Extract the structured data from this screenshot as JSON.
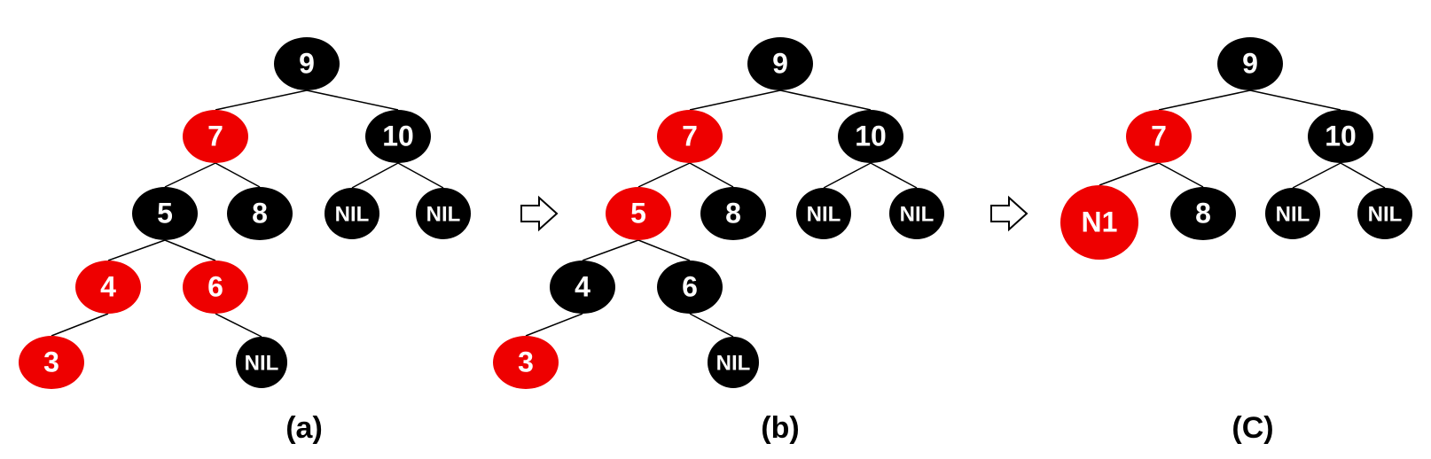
{
  "colors": {
    "black_node": "#000000",
    "red_node": "#ee0000",
    "label": "#ffffff",
    "edge": "#000000",
    "background": "#ffffff"
  },
  "panels": [
    {
      "id": "a",
      "caption": "(a)",
      "nodes": [
        {
          "id": "a9",
          "label": "9",
          "color": "black"
        },
        {
          "id": "a7",
          "label": "7",
          "color": "red"
        },
        {
          "id": "a10",
          "label": "10",
          "color": "black"
        },
        {
          "id": "a5",
          "label": "5",
          "color": "black"
        },
        {
          "id": "a8",
          "label": "8",
          "color": "black"
        },
        {
          "id": "anil1",
          "label": "NIL",
          "color": "black"
        },
        {
          "id": "anil2",
          "label": "NIL",
          "color": "black"
        },
        {
          "id": "a4",
          "label": "4",
          "color": "red"
        },
        {
          "id": "a6",
          "label": "6",
          "color": "red"
        },
        {
          "id": "a3",
          "label": "3",
          "color": "red"
        },
        {
          "id": "anil3",
          "label": "NIL",
          "color": "black"
        }
      ],
      "edges": [
        [
          "a9",
          "a7"
        ],
        [
          "a9",
          "a10"
        ],
        [
          "a7",
          "a5"
        ],
        [
          "a7",
          "a8"
        ],
        [
          "a10",
          "anil1"
        ],
        [
          "a10",
          "anil2"
        ],
        [
          "a5",
          "a4"
        ],
        [
          "a5",
          "a6"
        ],
        [
          "a4",
          "a3"
        ],
        [
          "a6",
          "anil3"
        ]
      ]
    },
    {
      "id": "b",
      "caption": "(b)",
      "nodes": [
        {
          "id": "b9",
          "label": "9",
          "color": "black"
        },
        {
          "id": "b7",
          "label": "7",
          "color": "red"
        },
        {
          "id": "b10",
          "label": "10",
          "color": "black"
        },
        {
          "id": "b5",
          "label": "5",
          "color": "red"
        },
        {
          "id": "b8",
          "label": "8",
          "color": "black"
        },
        {
          "id": "bnil1",
          "label": "NIL",
          "color": "black"
        },
        {
          "id": "bnil2",
          "label": "NIL",
          "color": "black"
        },
        {
          "id": "b4",
          "label": "4",
          "color": "black"
        },
        {
          "id": "b6",
          "label": "6",
          "color": "black"
        },
        {
          "id": "b3",
          "label": "3",
          "color": "red"
        },
        {
          "id": "bnil3",
          "label": "NIL",
          "color": "black"
        }
      ],
      "edges": [
        [
          "b9",
          "b7"
        ],
        [
          "b9",
          "b10"
        ],
        [
          "b7",
          "b5"
        ],
        [
          "b7",
          "b8"
        ],
        [
          "b10",
          "bnil1"
        ],
        [
          "b10",
          "bnil2"
        ],
        [
          "b5",
          "b4"
        ],
        [
          "b5",
          "b6"
        ],
        [
          "b4",
          "b3"
        ],
        [
          "b6",
          "bnil3"
        ]
      ]
    },
    {
      "id": "c",
      "caption": "(C)",
      "nodes": [
        {
          "id": "c9",
          "label": "9",
          "color": "black"
        },
        {
          "id": "c7",
          "label": "7",
          "color": "red"
        },
        {
          "id": "c10",
          "label": "10",
          "color": "black"
        },
        {
          "id": "cn1",
          "label": "N1",
          "color": "red"
        },
        {
          "id": "c8",
          "label": "8",
          "color": "black"
        },
        {
          "id": "cnil1",
          "label": "NIL",
          "color": "black"
        },
        {
          "id": "cnil2",
          "label": "NIL",
          "color": "black"
        }
      ],
      "edges": [
        [
          "c9",
          "c7"
        ],
        [
          "c9",
          "c10"
        ],
        [
          "c7",
          "cn1"
        ],
        [
          "c7",
          "c8"
        ],
        [
          "c10",
          "cnil1"
        ],
        [
          "c10",
          "cnil2"
        ]
      ]
    }
  ],
  "arrows": [
    {
      "id": "arrow-1",
      "icon": "hollow-right-arrow"
    },
    {
      "id": "arrow-2",
      "icon": "hollow-right-arrow"
    }
  ]
}
